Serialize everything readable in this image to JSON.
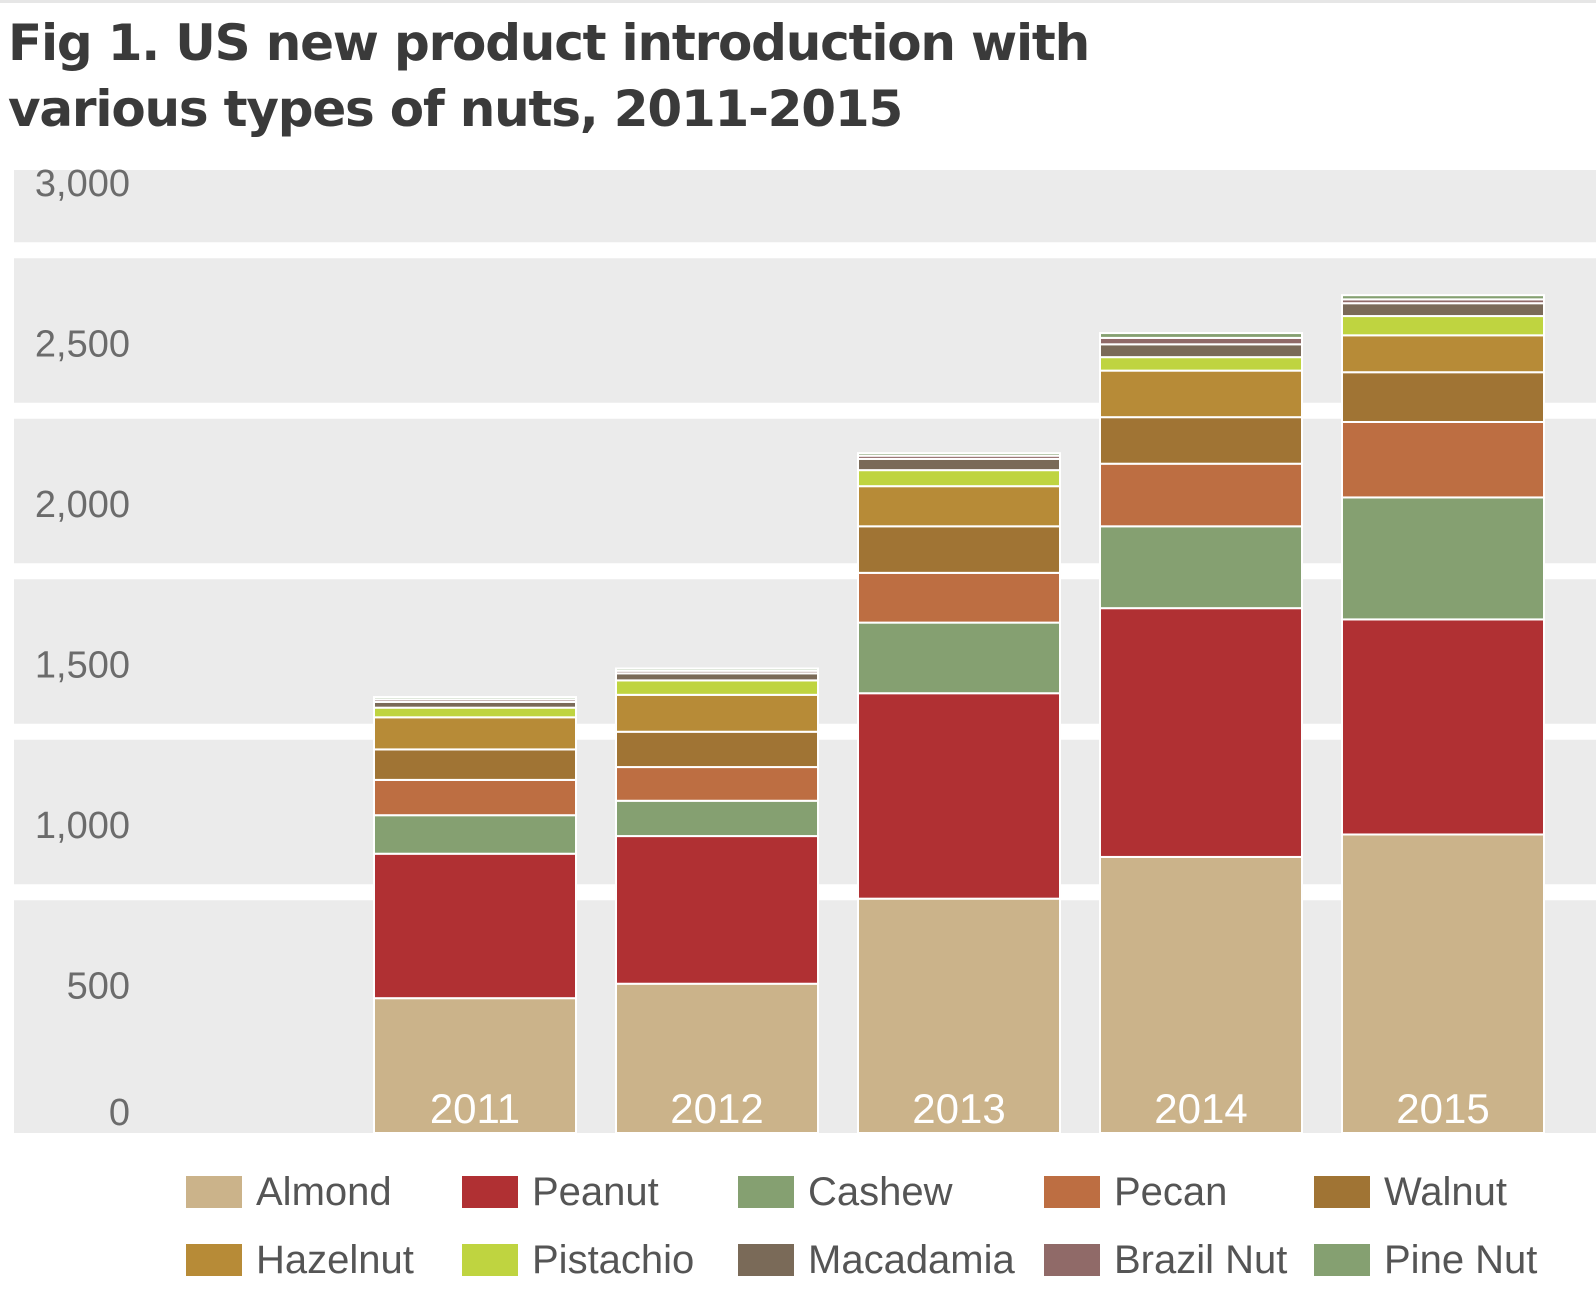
{
  "title_lines": [
    "Fig 1. US new product introduction with",
    "various types of nuts, 2011-2015"
  ],
  "chart_data": {
    "type": "bar",
    "stacked": true,
    "title": "Fig 1. US new product introduction with various types of nuts, 2011-2015",
    "xlabel": "",
    "ylabel": "",
    "categories": [
      "2011",
      "2012",
      "2013",
      "2014",
      "2015"
    ],
    "ylim": [
      0,
      3000
    ],
    "yticks": [
      0,
      500,
      1000,
      1500,
      2000,
      2500,
      3000
    ],
    "ytick_labels": [
      "0",
      "500",
      "1,000",
      "1,500",
      "2,000",
      "2,500",
      "3,000"
    ],
    "grid": "alternating horizontal bands",
    "legend_position": "bottom",
    "series": [
      {
        "name": "Almond",
        "color": "#cbb38a",
        "values": [
          420,
          465,
          730,
          860,
          930
        ]
      },
      {
        "name": "Peanut",
        "color": "#b03033",
        "values": [
          450,
          460,
          640,
          775,
          670
        ]
      },
      {
        "name": "Cashew",
        "color": "#85a071",
        "values": [
          120,
          110,
          220,
          255,
          380
        ]
      },
      {
        "name": "Pecan",
        "color": "#bd6e42",
        "values": [
          110,
          105,
          155,
          195,
          235
        ]
      },
      {
        "name": "Walnut",
        "color": "#a07434",
        "values": [
          95,
          110,
          145,
          145,
          155
        ]
      },
      {
        "name": "Hazelnut",
        "color": "#b78b37",
        "values": [
          100,
          115,
          125,
          145,
          115
        ]
      },
      {
        "name": "Pistachio",
        "color": "#bfd440",
        "values": [
          30,
          45,
          50,
          42,
          60
        ]
      },
      {
        "name": "Macadamia",
        "color": "#7a6a58",
        "values": [
          18,
          22,
          35,
          40,
          40
        ]
      },
      {
        "name": "Brazil Nut",
        "color": "#906a68",
        "values": [
          8,
          8,
          10,
          20,
          12
        ]
      },
      {
        "name": "Pine Nut",
        "color": "#85a071",
        "values": [
          7,
          7,
          8,
          15,
          13
        ]
      }
    ]
  }
}
